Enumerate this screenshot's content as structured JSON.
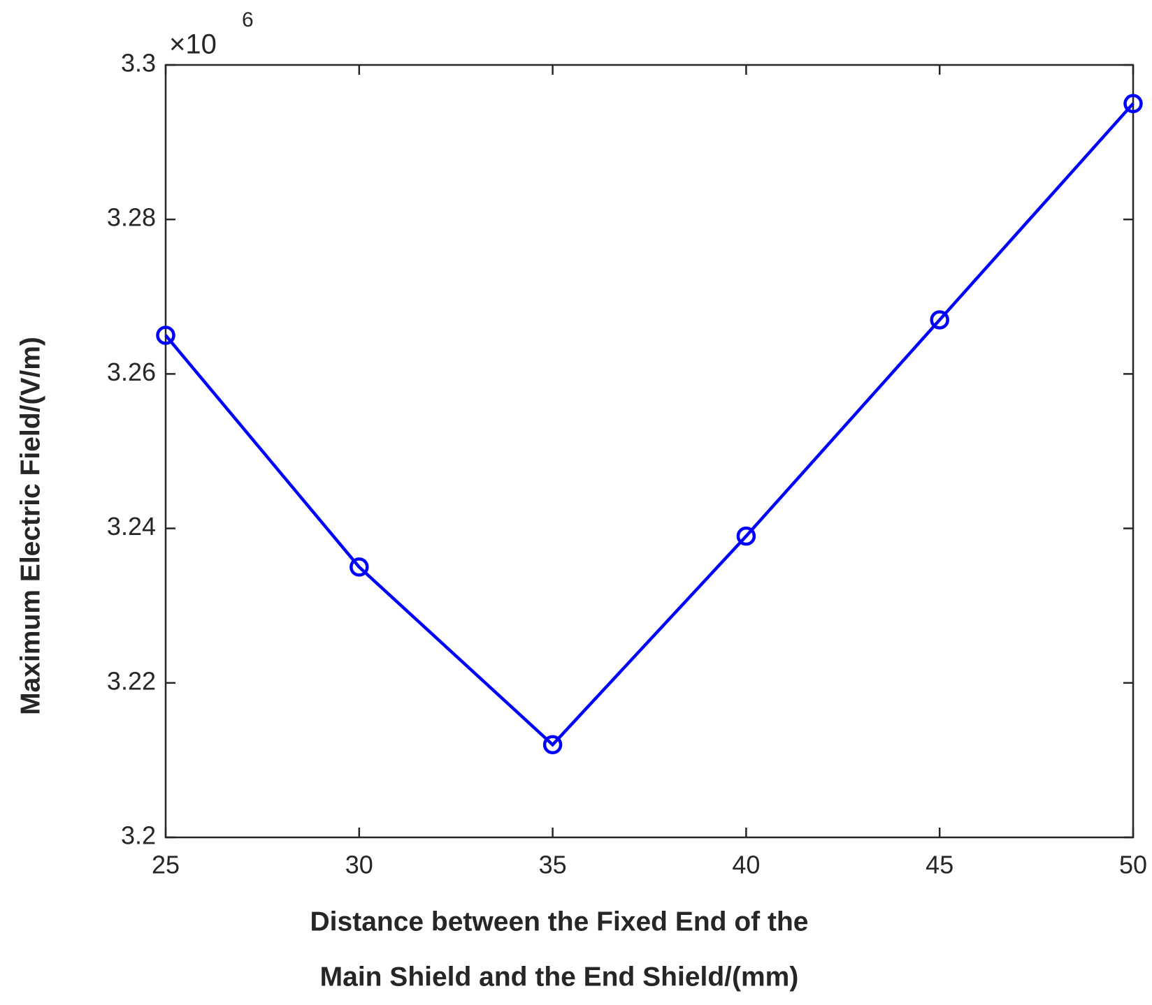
{
  "chart_data": {
    "type": "line",
    "x_label": [
      "Distance between the Fixed End of the",
      "Main Shield and the End Shield/(mm)"
    ],
    "y_label": "Maximum Electric Field/(V/m)",
    "y_multiplier": "×10",
    "y_exponent": "6",
    "x": [
      25,
      30,
      35,
      40,
      45,
      50
    ],
    "series": [
      {
        "color": "#0000ff",
        "values": [
          3.265,
          3.235,
          3.212,
          3.239,
          3.267,
          3.295
        ]
      }
    ],
    "xlim": [
      25,
      50
    ],
    "xticks": [
      25,
      30,
      35,
      40,
      45,
      50
    ],
    "ylim": [
      3.2,
      3.3
    ],
    "yticks": [
      3.2,
      3.22,
      3.24,
      3.26,
      3.28,
      3.3
    ],
    "grid": false
  }
}
